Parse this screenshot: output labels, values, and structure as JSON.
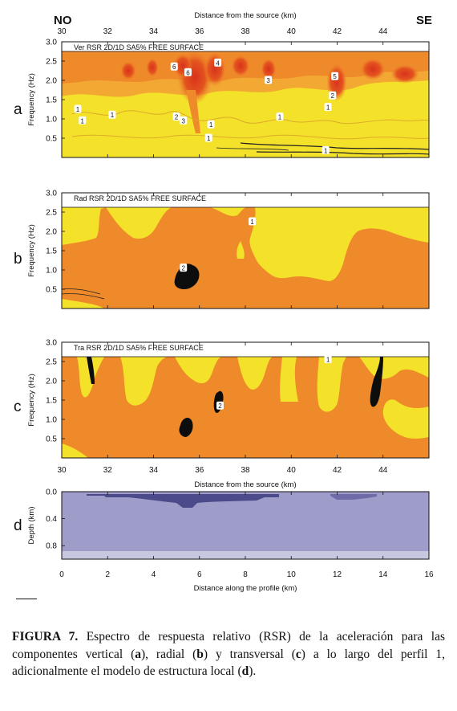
{
  "header": {
    "left_dir": "NO",
    "right_dir": "SE",
    "top_axis_label": "Distance from the source (km)"
  },
  "colors": {
    "yellow": "#f4e12a",
    "orange": "#ef8a2a",
    "light_orange": "#f3a833",
    "red": "#e2461f",
    "black": "#0d0d0d",
    "model_fill": "#9e9cc8",
    "model_dark": "#4b4a8a",
    "model_bottom": "#c8c7e0"
  },
  "chart_data": [
    {
      "type": "heatmap",
      "panel": "a",
      "title": "Ver RSR 2D/1D SA5% FREE SURFACE",
      "ylabel": "Frequency (Hz)",
      "xlim": [
        30,
        46
      ],
      "ylim": [
        0,
        3
      ],
      "xticks": [
        "30",
        "32",
        "34",
        "36",
        "38",
        "40",
        "42",
        "44"
      ],
      "yticks": [
        "0.5",
        "1.0",
        "1.5",
        "2.0",
        "2.5",
        "3.0"
      ],
      "contour_labels": [
        {
          "x": 34.9,
          "y": 2.35,
          "label": "6"
        },
        {
          "x": 35.5,
          "y": 2.2,
          "label": "6"
        },
        {
          "x": 36.8,
          "y": 2.45,
          "label": "4"
        },
        {
          "x": 39.0,
          "y": 2.0,
          "label": "3"
        },
        {
          "x": 41.9,
          "y": 2.1,
          "label": "5"
        },
        {
          "x": 41.8,
          "y": 1.6,
          "label": "2"
        },
        {
          "x": 41.6,
          "y": 1.3,
          "label": "1"
        },
        {
          "x": 30.7,
          "y": 1.25,
          "label": "1"
        },
        {
          "x": 30.9,
          "y": 0.95,
          "label": "1"
        },
        {
          "x": 32.2,
          "y": 1.1,
          "label": "1"
        },
        {
          "x": 35.0,
          "y": 1.05,
          "label": "2"
        },
        {
          "x": 35.3,
          "y": 0.95,
          "label": "3"
        },
        {
          "x": 36.5,
          "y": 0.85,
          "label": "1"
        },
        {
          "x": 39.5,
          "y": 1.05,
          "label": "1"
        },
        {
          "x": 36.4,
          "y": 0.5,
          "label": "1"
        },
        {
          "x": 41.5,
          "y": 0.18,
          "label": "1"
        }
      ]
    },
    {
      "type": "heatmap",
      "panel": "b",
      "title": "Rad RSR 2D/1D SA5% FREE SURFACE",
      "ylabel": "Frequency (Hz)",
      "xlim": [
        30,
        46
      ],
      "ylim": [
        0,
        3
      ],
      "xticks": [
        "30",
        "32",
        "34",
        "36",
        "38",
        "40",
        "42",
        "44"
      ],
      "yticks": [
        "0.5",
        "1.0",
        "1.5",
        "2.0",
        "2.5",
        "3.0"
      ],
      "contour_labels": [
        {
          "x": 38.3,
          "y": 2.25,
          "label": "1"
        },
        {
          "x": 35.3,
          "y": 1.05,
          "label": "2"
        }
      ]
    },
    {
      "type": "heatmap",
      "panel": "c",
      "title": "Tra RSR 2D/1D SA5% FREE SURFACE",
      "ylabel": "Frequency (Hz)",
      "xlabel": "Distance from the source (km)",
      "xlim": [
        30,
        46
      ],
      "ylim": [
        0,
        3
      ],
      "xticks": [
        "30",
        "32",
        "34",
        "36",
        "38",
        "40",
        "42",
        "44"
      ],
      "yticks": [
        "0.5",
        "1.0",
        "1.5",
        "2.0",
        "2.5",
        "3.0"
      ],
      "contour_labels": [
        {
          "x": 41.6,
          "y": 2.55,
          "label": "1"
        },
        {
          "x": 36.9,
          "y": 1.35,
          "label": "2"
        }
      ]
    },
    {
      "type": "area",
      "panel": "d",
      "ylabel": "Depth (km)",
      "xlabel": "Distance along the profile (km)",
      "xlim": [
        0,
        16
      ],
      "ylim": [
        0,
        1.0
      ],
      "xticks": [
        "0",
        "2",
        "4",
        "6",
        "8",
        "10",
        "12",
        "14",
        "16"
      ],
      "yticks": [
        "0.0",
        "0.4",
        "0.8"
      ]
    }
  ],
  "caption": {
    "label": "FIGURA 7.",
    "text_1": " Espectro de respuesta relativo (RSR) de la aceleración para las componentes vertical  (",
    "a": "a",
    "text_2": "), radial (",
    "b": "b",
    "text_3": ") y transversal (",
    "c": "c",
    "text_4": ") a lo largo del perfil 1, adicionalmente el modelo de estructura local (",
    "d": "d",
    "text_5": ")."
  }
}
